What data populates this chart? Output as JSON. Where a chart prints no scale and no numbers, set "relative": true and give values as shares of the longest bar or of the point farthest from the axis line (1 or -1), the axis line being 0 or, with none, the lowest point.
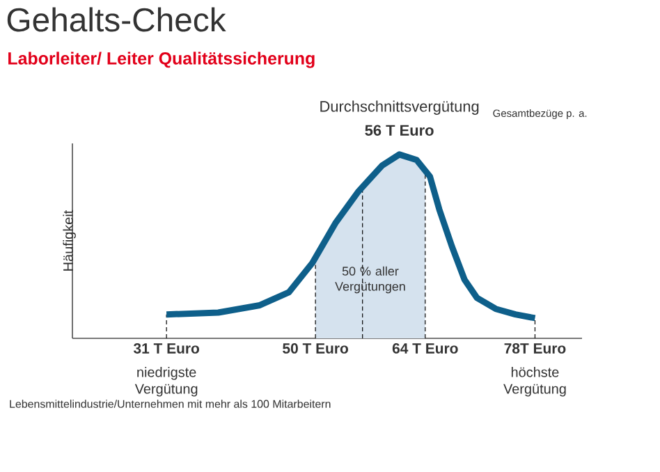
{
  "chart_data": {
    "type": "line",
    "title": "Gehalts-Check",
    "subtitle": "Laborleiter/ Leiter Qualitätssicherung",
    "ylabel": "Häufigkeit",
    "relative": true,
    "series": [
      {
        "type": "area",
        "color": "#d5e2ee",
        "x": [
          50,
          52.6,
          55.5,
          58.5,
          60.7,
          62.9,
          64
        ],
        "values": [
          0.43,
          0.63,
          0.8,
          0.94,
          1,
          0.97,
          0.91
        ]
      },
      {
        "color": "#0e5f8a",
        "x": [
          31,
          37.6,
          42.9,
          46.6,
          49.6,
          52.6,
          55.5,
          58.5,
          60.7,
          62.9,
          64.6,
          65.8,
          67.4,
          69.0,
          70.6,
          73.0,
          75.5,
          78
        ],
        "values": [
          0.13,
          0.14,
          0.18,
          0.25,
          0.41,
          0.63,
          0.8,
          0.94,
          1,
          0.97,
          0.88,
          0.7,
          0.5,
          0.32,
          0.22,
          0.16,
          0.13,
          0.11
        ]
      }
    ],
    "xlim": [
      19,
      84
    ],
    "xticks": [
      {
        "value": 31,
        "label": "31 T Euro"
      },
      {
        "value": 50,
        "label": "50 T Euro"
      },
      {
        "value": 64,
        "label": "64 T Euro"
      },
      {
        "value": 78,
        "label": "78T Euro"
      }
    ],
    "ref_lines": [
      {
        "axis": "x",
        "value": 31,
        "line_style": "dashed"
      },
      {
        "axis": "x",
        "value": 50,
        "line_style": "dashed"
      },
      {
        "axis": "x",
        "value": 56,
        "line_style": "dashed"
      },
      {
        "axis": "x",
        "value": 64,
        "line_style": "dashed"
      },
      {
        "axis": "x",
        "value": 78,
        "line_style": "dashed"
      }
    ],
    "annotations": [
      "Durchschnittsvergütung",
      "56 T Euro",
      "Gesamtbezüge p. a.",
      "Lebensmittelindustrie/Unternehmen mit mehr als 100 Mitarbeitern",
      "niedrigste Vergütung",
      "höchste Vergütung",
      "50 % aller Vergütungen"
    ]
  }
}
